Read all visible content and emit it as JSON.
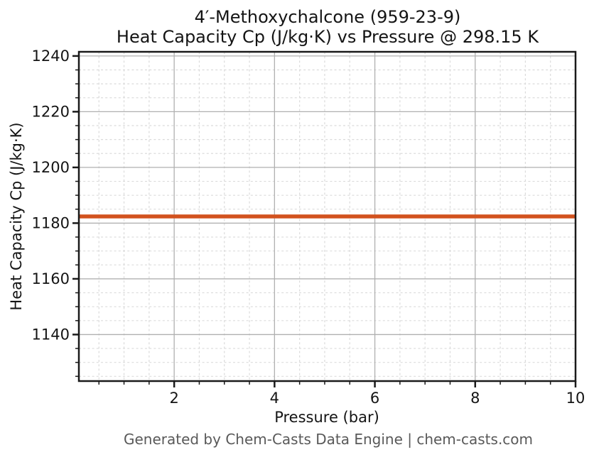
{
  "titles": {
    "line1": "4′-Methoxychalcone (959-23-9)",
    "line2": "Heat Capacity Cp (J/kg·K) vs Pressure @ 298.15 K"
  },
  "footer": "Generated by Chem-Casts Data Engine | chem-casts.com",
  "colors": {
    "line": "#d2521e",
    "grid_major": "#b0b0b0",
    "grid_minor": "#dbdbdb",
    "spine": "#1a1a1a",
    "tick": "#1a1a1a",
    "text": "#141414",
    "footer_text": "#595959",
    "background": "#ffffff"
  },
  "chart_data": {
    "type": "line",
    "title": "4′-Methoxychalcone (959-23-9)\nHeat Capacity Cp (J/kg·K) vs Pressure @ 298.15 K",
    "xlabel": "Pressure (bar)",
    "ylabel": "Heat Capacity Cp (J/kg·K)",
    "xlim": [
      0.1,
      10
    ],
    "ylim": [
      1123.3,
      1241.5
    ],
    "xticks": [
      2,
      4,
      6,
      8,
      10
    ],
    "yticks": [
      1140,
      1160,
      1180,
      1200,
      1220,
      1240
    ],
    "minor_x_step": 0.5,
    "minor_y_step": 5,
    "grid": {
      "major": "solid",
      "minor": "dashed"
    },
    "legend": "none",
    "series": [
      {
        "name": "Heat Capacity Cp (J/kg·K)",
        "color": "#d2521e",
        "line_width": 5.5,
        "x": [
          0.1,
          0.5,
          1.0,
          1.5,
          2.0,
          2.5,
          3.0,
          3.5,
          4.0,
          4.5,
          5.0,
          5.5,
          6.0,
          6.5,
          7.0,
          7.5,
          8.0,
          8.5,
          9.0,
          9.5,
          10.0
        ],
        "y": [
          1182.4,
          1182.4,
          1182.4,
          1182.4,
          1182.4,
          1182.4,
          1182.4,
          1182.4,
          1182.4,
          1182.4,
          1182.4,
          1182.4,
          1182.4,
          1182.4,
          1182.4,
          1182.4,
          1182.4,
          1182.4,
          1182.4,
          1182.4,
          1182.4
        ]
      }
    ]
  }
}
